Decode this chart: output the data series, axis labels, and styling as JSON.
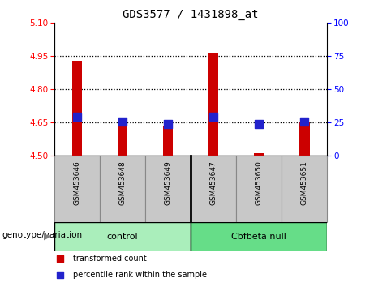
{
  "title": "GDS3577 / 1431898_at",
  "samples": [
    "GSM453646",
    "GSM453648",
    "GSM453649",
    "GSM453647",
    "GSM453650",
    "GSM453651"
  ],
  "red_values": [
    4.93,
    4.648,
    4.635,
    4.967,
    4.51,
    4.653
  ],
  "blue_values": [
    4.675,
    4.655,
    4.643,
    4.675,
    4.643,
    4.655
  ],
  "ymin": 4.5,
  "ymax": 5.1,
  "y2min": 0,
  "y2max": 100,
  "yticks": [
    4.5,
    4.65,
    4.8,
    4.95,
    5.1
  ],
  "y2ticks": [
    0,
    25,
    50,
    75,
    100
  ],
  "dotted_lines": [
    4.65,
    4.8,
    4.95
  ],
  "control_label": "control",
  "treatment_label": "Cbfbeta null",
  "group_label": "genotype/variation",
  "legend_red": "transformed count",
  "legend_blue": "percentile rank within the sample",
  "bar_color": "#cc0000",
  "dot_color": "#2222cc",
  "control_color": "#aaeebb",
  "treatment_color": "#66dd88",
  "bg_color": "#ffffff",
  "tick_area_color": "#c8c8c8",
  "tick_area_border": "#888888"
}
